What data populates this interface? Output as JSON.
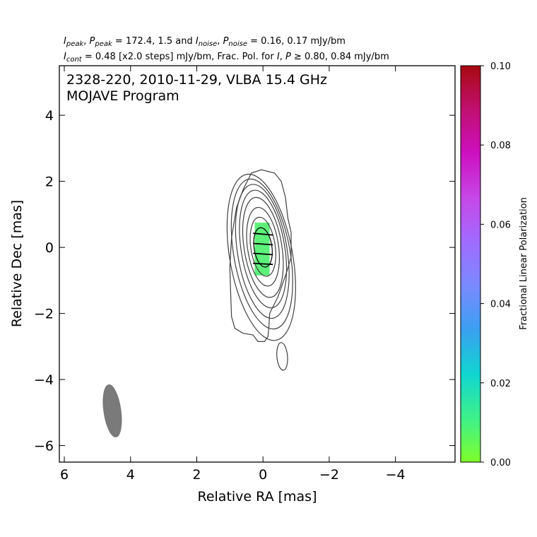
{
  "header": {
    "line1": [
      {
        "t": "I",
        "it": true
      },
      {
        "t": "peak",
        "sub": true,
        "it": true
      },
      {
        "t": ", "
      },
      {
        "t": "P",
        "it": true
      },
      {
        "t": "peak",
        "sub": true,
        "it": true
      },
      {
        "t": " = 172.4, 1.5 and "
      },
      {
        "t": "I",
        "it": true
      },
      {
        "t": "noise",
        "sub": true,
        "it": true
      },
      {
        "t": ", "
      },
      {
        "t": "P",
        "it": true
      },
      {
        "t": "noise",
        "sub": true,
        "it": true
      },
      {
        "t": " = 0.16, 0.17 mJy/bm"
      }
    ],
    "line2": [
      {
        "t": "I",
        "it": true
      },
      {
        "t": "cont",
        "sub": true,
        "it": true
      },
      {
        "t": " = 0.48 [x2.0 steps] mJy/bm, Frac. Pol. for "
      },
      {
        "t": "I",
        "it": true
      },
      {
        "t": ", "
      },
      {
        "t": "P",
        "it": true
      },
      {
        "t": " ≥  0.80, 0.84 mJy/bm"
      }
    ]
  },
  "plot_title": {
    "line1": "2328-220, 2010-11-29, VLBA 15.4 GHz",
    "line2": "MOJAVE Program"
  },
  "chart_data": {
    "type": "contour",
    "xlabel": "Relative RA [mas]",
    "ylabel": "Relative Dec [mas]",
    "xlim": [
      6.15,
      -5.8
    ],
    "ylim": [
      -6.5,
      5.5
    ],
    "x_ticks": [
      6,
      4,
      2,
      0,
      -2,
      -4
    ],
    "x_tick_labels": [
      "6",
      "4",
      "2",
      "0",
      "−2",
      "−4"
    ],
    "y_ticks": [
      4,
      2,
      0,
      -2,
      -4,
      -6
    ],
    "y_tick_labels": [
      "4",
      "2",
      "0",
      "−2",
      "−4",
      "−6"
    ],
    "contour_color": "#404040",
    "contour_levels_mJy": [
      0.48,
      0.96,
      1.92,
      3.84,
      7.68,
      15.36,
      30.72,
      61.44,
      122.88
    ],
    "main_contours": [
      {
        "cx": 0.05,
        "cy": -0.3,
        "rx": 0.95,
        "ry": 2.55,
        "rot": -10
      },
      {
        "cx": 0.03,
        "cy": -0.2,
        "rx": 0.85,
        "ry": 2.3,
        "rot": -10
      },
      {
        "cx": 0.02,
        "cy": -0.12,
        "rx": 0.75,
        "ry": 2.05,
        "rot": -9
      },
      {
        "cx": 0.0,
        "cy": -0.05,
        "rx": 0.66,
        "ry": 1.8,
        "rot": -9
      },
      {
        "cx": 0.0,
        "cy": 0.0,
        "rx": 0.57,
        "ry": 1.53,
        "rot": -9
      },
      {
        "cx": 0.0,
        "cy": 0.02,
        "rx": 0.47,
        "ry": 1.2,
        "rot": -8
      },
      {
        "cx": 0.0,
        "cy": 0.02,
        "rx": 0.37,
        "ry": 0.9,
        "rot": -8
      },
      {
        "cx": 0.0,
        "cy": 0.0,
        "rx": 0.27,
        "ry": 0.6,
        "rot": -8
      }
    ],
    "outer_contour": [
      [
        -0.55,
        2.0
      ],
      [
        -0.35,
        2.25
      ],
      [
        0.05,
        2.35
      ],
      [
        0.35,
        2.25
      ],
      [
        0.6,
        1.75
      ],
      [
        0.8,
        1.2
      ],
      [
        0.95,
        0.3
      ],
      [
        1.0,
        -0.6
      ],
      [
        0.98,
        -1.3
      ],
      [
        0.95,
        -2.1
      ],
      [
        0.85,
        -2.45
      ],
      [
        0.6,
        -2.6
      ],
      [
        0.3,
        -2.65
      ],
      [
        0.15,
        -2.85
      ],
      [
        -0.05,
        -2.85
      ],
      [
        -0.15,
        -2.7
      ],
      [
        -0.18,
        -2.4
      ],
      [
        -0.2,
        -2.0
      ],
      [
        -0.45,
        -1.5
      ],
      [
        -0.7,
        -0.8
      ],
      [
        -0.85,
        -0.3
      ],
      [
        -0.85,
        0.45
      ],
      [
        -0.75,
        0.9
      ],
      [
        -0.68,
        1.5
      ],
      [
        -0.55,
        2.0
      ]
    ],
    "secondary_component": {
      "cx": -0.58,
      "cy": -3.3,
      "rx": 0.16,
      "ry": 0.42,
      "rot": -5
    },
    "pol_region": {
      "color": "#5df07a",
      "x": [
        -0.2,
        0.25
      ],
      "y": [
        -0.85,
        0.75
      ]
    },
    "evpa_vectors": [
      {
        "x": 0.0,
        "y": 0.4,
        "angle": 5
      },
      {
        "x": 0.0,
        "y": 0.1,
        "angle": 4
      },
      {
        "x": 0.0,
        "y": -0.2,
        "angle": 4
      },
      {
        "x": 0.0,
        "y": -0.5,
        "angle": 3
      }
    ],
    "evpa_half_length": 0.3,
    "beam": {
      "x": 4.55,
      "y": -4.95,
      "major": 1.6,
      "minor": 0.52,
      "pa_deg": -8,
      "color": "#7a7a7a"
    },
    "colorbar": {
      "label": "Fractional Linear Polarization",
      "min": 0.0,
      "max": 0.1,
      "ticks": [
        0.0,
        0.02,
        0.04,
        0.06,
        0.08,
        0.1
      ],
      "tick_labels": [
        "0.00",
        "0.02",
        "0.04",
        "0.06",
        "0.08",
        "0.10"
      ],
      "colors": [
        "#7fff2a",
        "#3ef08b",
        "#10d6d0",
        "#3aa0f0",
        "#7a8aff",
        "#a06bff",
        "#c648e6",
        "#cc10c0",
        "#c01070",
        "#a80a10"
      ]
    }
  }
}
